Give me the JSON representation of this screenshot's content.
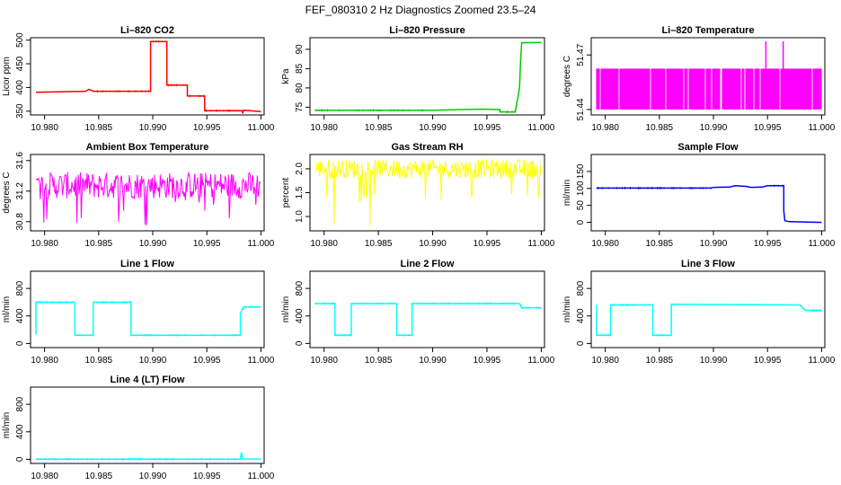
{
  "title": "FEF_080310  2 Hz Diagnostics Zoomed 23.5–24",
  "colors": {
    "axis": "#000000",
    "red": "#ff0000",
    "green": "#00cc00",
    "magenta": "#ff00ff",
    "yellow": "#ffff00",
    "blue": "#0000ff",
    "cyan": "#00ffff"
  },
  "chart_data": [
    {
      "type": "line",
      "title": "Li–820 CO2",
      "ylabel": "Licor ppm",
      "xlim": [
        10.9787,
        11.0003
      ],
      "ylim": [
        342,
        505
      ],
      "xticks": [
        10.98,
        10.985,
        10.99,
        10.995,
        11.0
      ],
      "xtick_labels": [
        "10.980",
        "10.985",
        "10.990",
        "10.995",
        "11.000"
      ],
      "yticks": [
        350,
        400,
        450,
        500
      ],
      "ytick_labels": [
        "350",
        "400",
        "450",
        "500"
      ],
      "color_key": "red",
      "style": "step",
      "points": [
        [
          10.9792,
          390
        ],
        [
          10.9838,
          392
        ],
        [
          10.9841,
          396
        ],
        [
          10.9845,
          392
        ],
        [
          10.9898,
          392
        ],
        [
          10.9898,
          497
        ],
        [
          10.9913,
          497
        ],
        [
          10.9913,
          405
        ],
        [
          10.9932,
          405
        ],
        [
          10.9932,
          382
        ],
        [
          10.9948,
          382
        ],
        [
          10.9948,
          351
        ],
        [
          10.9983,
          351
        ],
        [
          10.9983,
          345
        ],
        [
          10.9984,
          352
        ],
        [
          11.0,
          349
        ]
      ]
    },
    {
      "type": "line",
      "title": "Li–820 Pressure",
      "ylabel": "kPa",
      "xlim": [
        10.9787,
        11.0003
      ],
      "ylim": [
        73,
        93
      ],
      "xticks": [
        10.98,
        10.985,
        10.99,
        10.995,
        11.0
      ],
      "xtick_labels": [
        "10.980",
        "10.985",
        "10.990",
        "10.995",
        "11.000"
      ],
      "yticks": [
        75,
        80,
        85,
        90
      ],
      "ytick_labels": [
        "75",
        "80",
        "85",
        "90"
      ],
      "color_key": "green",
      "style": "step",
      "points": [
        [
          10.9792,
          74.2
        ],
        [
          10.99,
          74.2
        ],
        [
          10.9945,
          74.5
        ],
        [
          10.9962,
          74.4
        ],
        [
          10.9962,
          73.8
        ],
        [
          10.9976,
          73.8
        ],
        [
          10.998,
          80
        ],
        [
          10.9981,
          87
        ],
        [
          10.9982,
          91.7
        ],
        [
          11.0,
          91.8
        ]
      ]
    },
    {
      "type": "line",
      "title": "Li–820 Temperature",
      "ylabel": "degrees C",
      "xlim": [
        10.9787,
        11.0003
      ],
      "ylim": [
        51.437,
        51.4795
      ],
      "xticks": [
        10.98,
        10.985,
        10.99,
        10.995,
        11.0
      ],
      "xtick_labels": [
        "10.980",
        "10.985",
        "10.990",
        "10.995",
        "11.000"
      ],
      "yticks": [
        51.44,
        51.47
      ],
      "ytick_labels": [
        "51.44",
        "51.47"
      ],
      "color_key": "magenta",
      "style": "band",
      "band": {
        "x0": 10.9792,
        "x1": 11.0,
        "low": 51.44,
        "high": 51.4625
      },
      "spikes": [
        [
          10.99485,
          51.4775
        ],
        [
          10.99645,
          51.4775
        ]
      ]
    },
    {
      "type": "line",
      "title": "Ambient Box Temperature",
      "ylabel": "degrees C",
      "xlim": [
        10.9787,
        11.0003
      ],
      "ylim": [
        30.68,
        31.68
      ],
      "xticks": [
        10.98,
        10.985,
        10.99,
        10.995,
        11.0
      ],
      "xtick_labels": [
        "10.980",
        "10.985",
        "10.990",
        "10.995",
        "11.000"
      ],
      "yticks": [
        30.8,
        31.2,
        31.6
      ],
      "ytick_labels": [
        "30.8",
        "31.2",
        "31.6"
      ],
      "color_key": "magenta",
      "style": "noise",
      "noise": {
        "x0": 10.9792,
        "x1": 11.0,
        "low": 31.1,
        "high": 31.45,
        "dips": [
          30.9,
          30.75
        ]
      }
    },
    {
      "type": "line",
      "title": "Gas Stream RH",
      "ylabel": "percent",
      "xlim": [
        10.9787,
        11.0003
      ],
      "ylim": [
        0.7,
        2.3
      ],
      "xticks": [
        10.98,
        10.985,
        10.99,
        10.995,
        11.0
      ],
      "xtick_labels": [
        "10.980",
        "10.985",
        "10.990",
        "10.995",
        "11.000"
      ],
      "yticks": [
        1.0,
        1.5,
        2.0
      ],
      "ytick_labels": [
        "1.0",
        "1.5",
        "2.0"
      ],
      "color_key": "yellow",
      "style": "noise",
      "noise": {
        "x0": 10.9792,
        "x1": 11.0,
        "low": 1.8,
        "high": 2.2,
        "dips": [
          1.3,
          0.8
        ]
      }
    },
    {
      "type": "line",
      "title": "Sample Flow",
      "ylabel": "ml/min",
      "xlim": [
        10.9787,
        11.0003
      ],
      "ylim": [
        -25,
        200
      ],
      "xticks": [
        10.98,
        10.985,
        10.99,
        10.995,
        11.0
      ],
      "xtick_labels": [
        "10.980",
        "10.985",
        "10.990",
        "10.995",
        "11.000"
      ],
      "yticks": [
        0,
        50,
        100,
        150
      ],
      "ytick_labels": [
        "0",
        "50",
        "100",
        "150"
      ],
      "color_key": "blue",
      "style": "step",
      "points": [
        [
          10.9792,
          101
        ],
        [
          10.9898,
          101
        ],
        [
          10.99,
          103
        ],
        [
          10.9915,
          104
        ],
        [
          10.992,
          108
        ],
        [
          10.993,
          106
        ],
        [
          10.9935,
          103
        ],
        [
          10.9945,
          104
        ],
        [
          10.995,
          108
        ],
        [
          10.9965,
          108
        ],
        [
          10.9965,
          35
        ],
        [
          10.9966,
          5
        ],
        [
          10.997,
          2
        ],
        [
          11.0,
          0
        ]
      ]
    },
    {
      "type": "line",
      "title": "Line 1 Flow",
      "ylabel": "ml/min",
      "xlim": [
        10.9787,
        11.0003
      ],
      "ylim": [
        -60,
        1050
      ],
      "xticks": [
        10.98,
        10.985,
        10.99,
        10.995,
        11.0
      ],
      "xtick_labels": [
        "10.980",
        "10.985",
        "10.990",
        "10.995",
        "11.000"
      ],
      "yticks": [
        0,
        400,
        800
      ],
      "ytick_labels": [
        "0",
        "400",
        "800"
      ],
      "color_key": "cyan",
      "style": "step",
      "points": [
        [
          10.9792,
          130
        ],
        [
          10.9792,
          600
        ],
        [
          10.9828,
          600
        ],
        [
          10.9828,
          120
        ],
        [
          10.9845,
          120
        ],
        [
          10.9845,
          600
        ],
        [
          10.988,
          600
        ],
        [
          10.988,
          120
        ],
        [
          10.9981,
          120
        ],
        [
          10.9981,
          440
        ],
        [
          10.9984,
          530
        ],
        [
          11.0,
          530
        ]
      ]
    },
    {
      "type": "line",
      "title": "Line 2 Flow",
      "ylabel": "ml/min",
      "xlim": [
        10.9787,
        11.0003
      ],
      "ylim": [
        -60,
        1050
      ],
      "xticks": [
        10.98,
        10.985,
        10.99,
        10.995,
        11.0
      ],
      "xtick_labels": [
        "10.980",
        "10.985",
        "10.990",
        "10.995",
        "11.000"
      ],
      "yticks": [
        0,
        400,
        800
      ],
      "ytick_labels": [
        "0",
        "400",
        "800"
      ],
      "color_key": "cyan",
      "style": "step",
      "points": [
        [
          10.9792,
          580
        ],
        [
          10.981,
          580
        ],
        [
          10.981,
          120
        ],
        [
          10.9825,
          120
        ],
        [
          10.9825,
          580
        ],
        [
          10.9867,
          580
        ],
        [
          10.9867,
          120
        ],
        [
          10.9881,
          120
        ],
        [
          10.9881,
          580
        ],
        [
          10.998,
          580
        ],
        [
          10.9982,
          520
        ],
        [
          11.0,
          520
        ]
      ]
    },
    {
      "type": "line",
      "title": "Line 3 Flow",
      "ylabel": "ml/min",
      "xlim": [
        10.9787,
        11.0003
      ],
      "ylim": [
        -60,
        1050
      ],
      "xticks": [
        10.98,
        10.985,
        10.99,
        10.995,
        11.0
      ],
      "xtick_labels": [
        "10.980",
        "10.985",
        "10.990",
        "10.995",
        "11.000"
      ],
      "yticks": [
        0,
        400,
        800
      ],
      "ytick_labels": [
        "0",
        "400",
        "800"
      ],
      "color_key": "cyan",
      "style": "step",
      "points": [
        [
          10.9792,
          560
        ],
        [
          10.9792,
          120
        ],
        [
          10.9805,
          120
        ],
        [
          10.9805,
          560
        ],
        [
          10.9844,
          560
        ],
        [
          10.9844,
          120
        ],
        [
          10.9861,
          120
        ],
        [
          10.9861,
          570
        ],
        [
          10.998,
          560
        ],
        [
          10.9985,
          480
        ],
        [
          11.0,
          480
        ]
      ]
    },
    {
      "type": "line",
      "title": "Line 4 (LT) Flow",
      "ylabel": "ml/min",
      "xlim": [
        10.9787,
        11.0003
      ],
      "ylim": [
        -60,
        1050
      ],
      "xticks": [
        10.98,
        10.985,
        10.99,
        10.995,
        11.0
      ],
      "xtick_labels": [
        "10.980",
        "10.985",
        "10.990",
        "10.995",
        "11.000"
      ],
      "yticks": [
        0,
        400,
        800
      ],
      "ytick_labels": [
        "0",
        "400",
        "800"
      ],
      "color_key": "cyan",
      "style": "step",
      "points": [
        [
          10.9792,
          2
        ],
        [
          10.9981,
          2
        ],
        [
          10.9982,
          100
        ],
        [
          10.9983,
          5
        ],
        [
          11.0,
          2
        ]
      ]
    }
  ]
}
